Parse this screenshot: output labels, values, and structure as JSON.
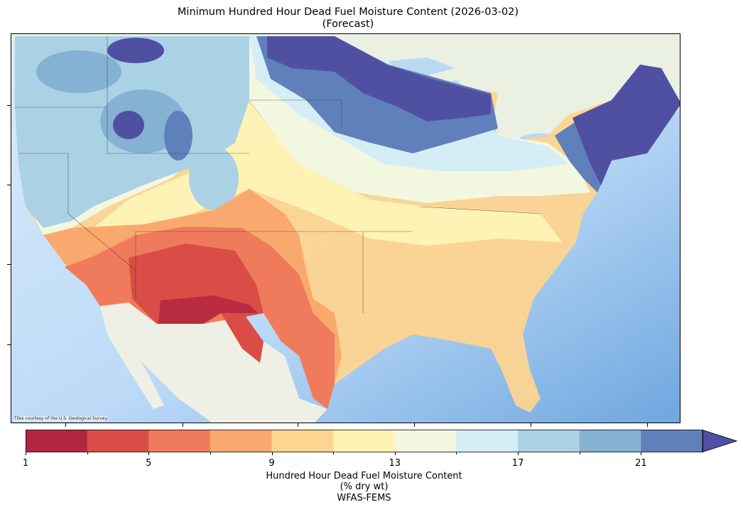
{
  "title": "Minimum Hundred Hour Dead Fuel Moisture Content (2026-03-02)",
  "subtitle": "(Forecast)",
  "map": {
    "attribution": "Tiles courtesy of the U.S. Geological Survey",
    "colors": {
      "ocean_light": "#d4e8fa",
      "ocean_dark": "#6ea6df",
      "land": "#eef0e6"
    }
  },
  "colorbar": {
    "label_line1": "Hundred Hour Dead Fuel Moisture Content",
    "label_line2": "(% dry wt)",
    "label_line3": "WFAS-FEMS",
    "min": 1,
    "max": 23,
    "extend": "max",
    "ticks": [
      "1",
      "5",
      "9",
      "13",
      "17",
      "21"
    ],
    "bins": [
      "#b2263f",
      "#d94d46",
      "#f07b5c",
      "#f9a96d",
      "#fdd490",
      "#fef3b5",
      "#f2f8e0",
      "#d5edf4",
      "#aad2e4",
      "#85b1d3",
      "#5f80ba"
    ],
    "over_color": "#5050a3"
  }
}
